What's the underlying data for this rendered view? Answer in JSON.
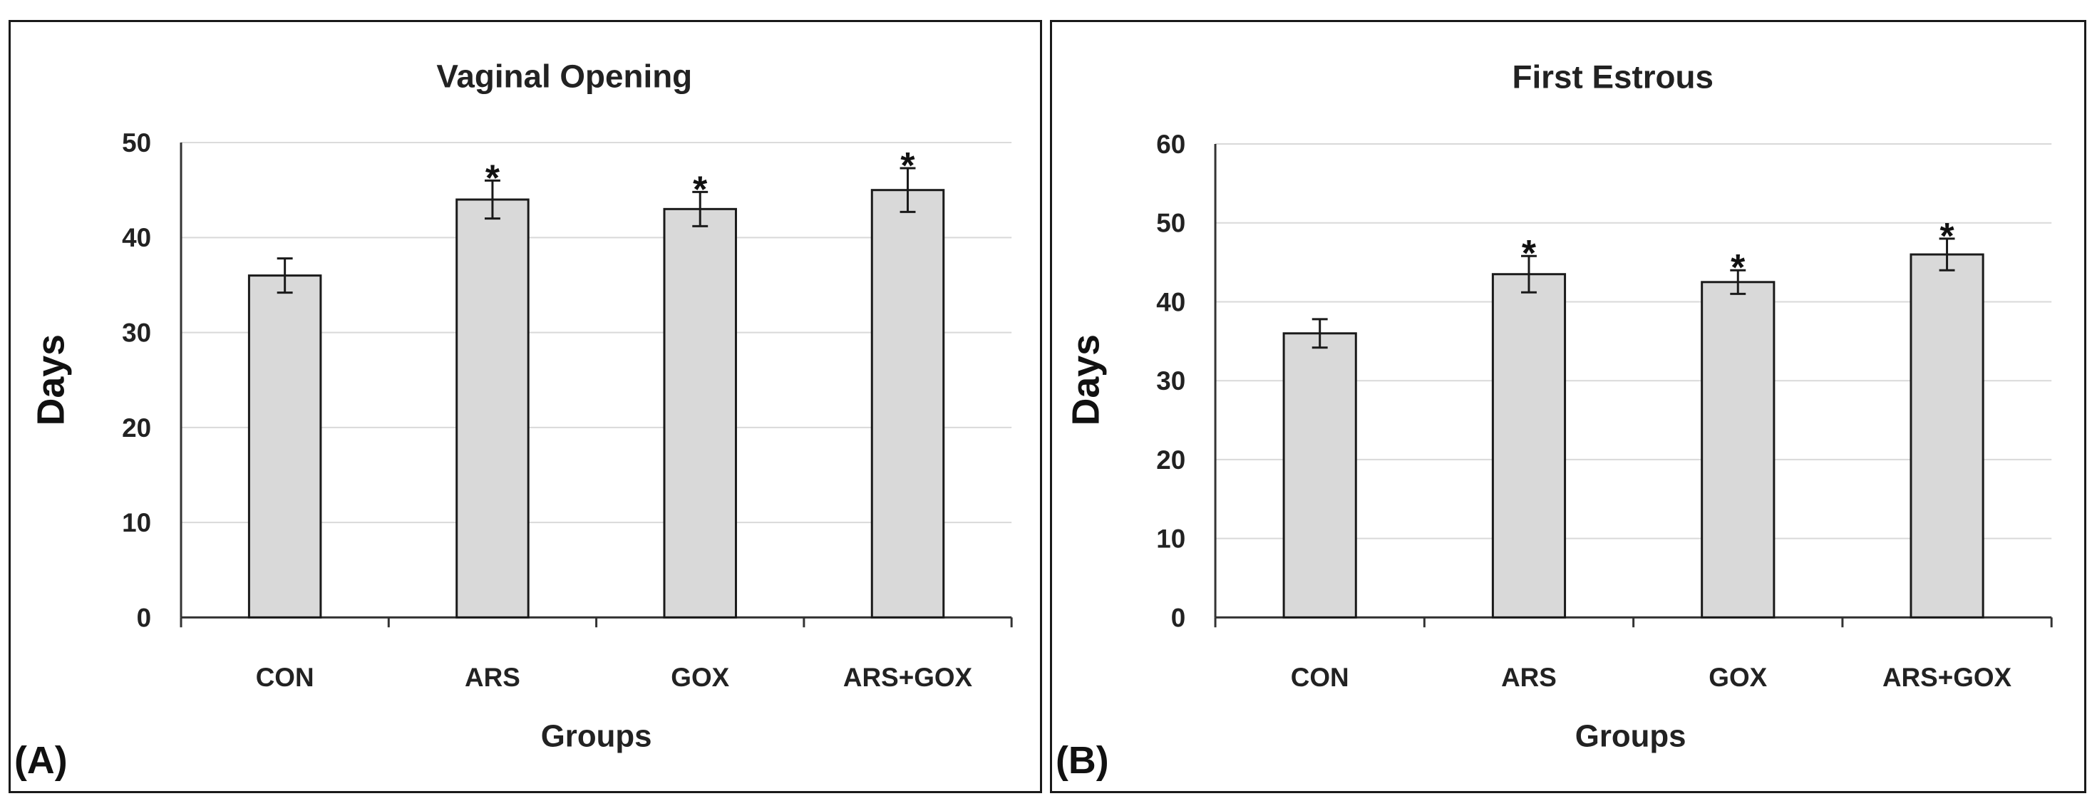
{
  "chart_data": [
    {
      "type": "bar",
      "panel_label": "(A)",
      "title": "Vaginal Opening",
      "xlabel": "Groups",
      "ylabel": "Days",
      "categories": [
        "CON",
        "ARS",
        "GOX",
        "ARS+GOX"
      ],
      "values": [
        36,
        44,
        43,
        45
      ],
      "errors": [
        1.8,
        2.0,
        1.8,
        2.3
      ],
      "significance": [
        "",
        "*",
        "*",
        "*"
      ],
      "ylim": [
        0,
        50
      ],
      "yticks": [
        0,
        10,
        20,
        30,
        40,
        50
      ],
      "grid": true,
      "bar_color": "#d9d9d9"
    },
    {
      "type": "bar",
      "panel_label": "(B)",
      "title": "First Estrous",
      "xlabel": "Groups",
      "ylabel": "Days",
      "categories": [
        "CON",
        "ARS",
        "GOX",
        "ARS+GOX"
      ],
      "values": [
        36,
        43.5,
        42.5,
        46
      ],
      "errors": [
        1.8,
        2.3,
        1.5,
        2.0
      ],
      "significance": [
        "",
        "*",
        "*",
        "*"
      ],
      "ylim": [
        0,
        60
      ],
      "yticks": [
        0,
        10,
        20,
        30,
        40,
        50,
        60
      ],
      "grid": true,
      "bar_color": "#d9d9d9"
    }
  ]
}
